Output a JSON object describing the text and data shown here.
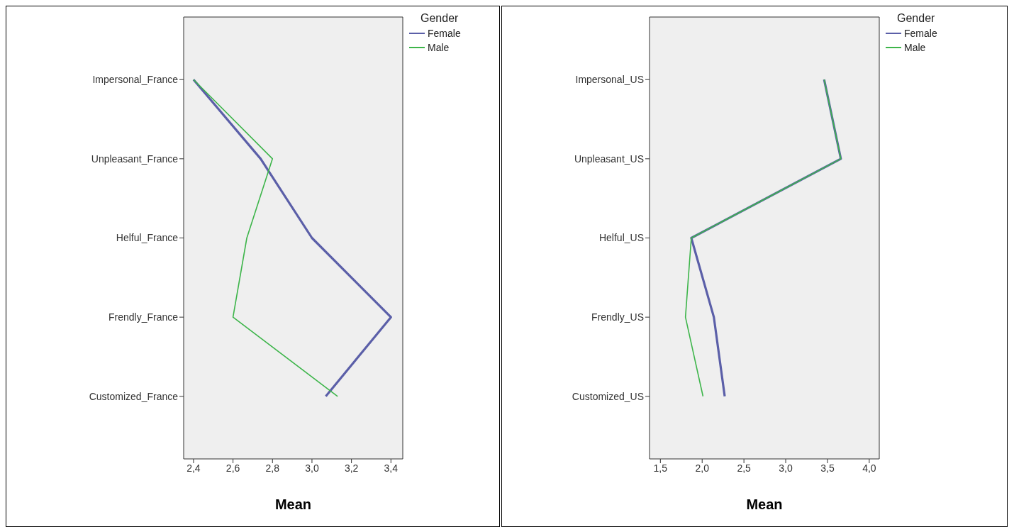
{
  "chart_data": [
    {
      "type": "line",
      "orientation": "horizontal",
      "xlabel": "Mean",
      "legend_title": "Gender",
      "legend": "top right",
      "categories": [
        "Impersonal_France",
        "Unpleasant_France",
        "Helful_France",
        "Frendly_France",
        "Customized_France"
      ],
      "series": [
        {
          "name": "Female",
          "color": "#5b5fa8",
          "values": [
            2.4,
            2.74,
            3.0,
            3.4,
            3.07
          ]
        },
        {
          "name": "Male",
          "color": "#3db54a",
          "values": [
            2.4,
            2.8,
            2.67,
            2.6,
            3.13
          ]
        }
      ],
      "xlim": [
        2.35,
        3.46
      ],
      "xticks": [
        {
          "value": 2.4,
          "label": "2,4"
        },
        {
          "value": 2.6,
          "label": "2,6"
        },
        {
          "value": 2.8,
          "label": "2,8"
        },
        {
          "value": 3.0,
          "label": "3,0"
        },
        {
          "value": 3.2,
          "label": "3,2"
        },
        {
          "value": 3.4,
          "label": "3,4"
        }
      ]
    },
    {
      "type": "line",
      "orientation": "horizontal",
      "xlabel": "Mean",
      "legend_title": "Gender",
      "legend": "top right",
      "categories": [
        "Impersonal_US",
        "Unpleasant_US",
        "Helful_US",
        "Frendly_US",
        "Customized_US"
      ],
      "series": [
        {
          "name": "Female",
          "color": "#5b5fa8",
          "values": [
            3.46,
            3.66,
            1.87,
            2.14,
            2.27
          ]
        },
        {
          "name": "Male",
          "color": "#3db54a",
          "values": [
            3.46,
            3.66,
            1.87,
            1.8,
            2.01
          ]
        }
      ],
      "xlim": [
        1.37,
        4.12
      ],
      "xticks": [
        {
          "value": 1.5,
          "label": "1,5"
        },
        {
          "value": 2.0,
          "label": "2,0"
        },
        {
          "value": 2.5,
          "label": "2,5"
        },
        {
          "value": 3.0,
          "label": "3,0"
        },
        {
          "value": 3.5,
          "label": "3,5"
        },
        {
          "value": 4.0,
          "label": "4,0"
        }
      ]
    }
  ]
}
